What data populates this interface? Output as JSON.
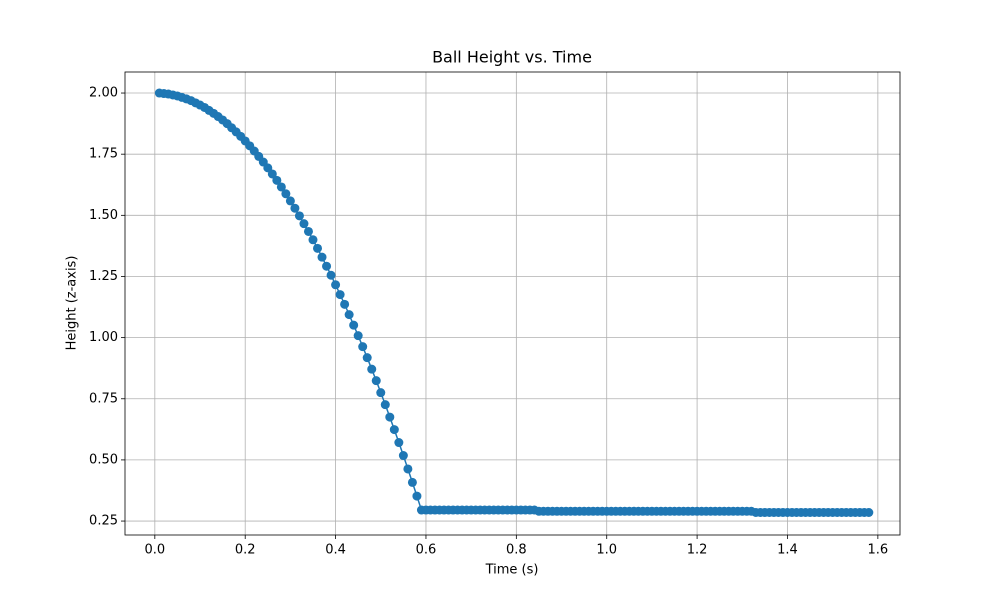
{
  "chart_data": {
    "type": "line",
    "title": "Ball Height vs. Time",
    "x_label": "Time (s)",
    "y_label": "Height (z-axis)",
    "grid": true,
    "marker": "o",
    "xlim": [
      -0.066,
      1.649
    ],
    "ylim": [
      0.193,
      2.086
    ],
    "xticks": [
      {
        "value": 0,
        "label": "0.0"
      },
      0.2,
      0.4,
      0.6,
      0.8,
      {
        "value": 1,
        "label": "1.0"
      },
      1.2,
      1.4,
      1.6
    ],
    "yticks": [
      0.25,
      {
        "value": 0.5,
        "label": "0.50"
      },
      0.75,
      {
        "value": 1,
        "label": "1.00"
      },
      1.25,
      {
        "value": 1.5,
        "label": "1.50"
      },
      1.75,
      {
        "value": 2,
        "label": "2.00"
      }
    ],
    "x": [
      0.01,
      0.02,
      0.03,
      0.04,
      0.05,
      0.06,
      0.07,
      0.08,
      0.09,
      0.1,
      0.11,
      0.12,
      0.13,
      0.14,
      0.15,
      0.16,
      0.17,
      0.18,
      0.19,
      0.2,
      0.21,
      0.22,
      0.23,
      0.24,
      0.25,
      0.26,
      0.27,
      0.28,
      0.29,
      0.3,
      0.31,
      0.32,
      0.33,
      0.34,
      0.35,
      0.36,
      0.37,
      0.38,
      0.39,
      0.4,
      0.41,
      0.42,
      0.43,
      0.44,
      0.45,
      0.46,
      0.47,
      0.48,
      0.49,
      0.5,
      0.51,
      0.52,
      0.53,
      0.54,
      0.55,
      0.56,
      0.57,
      0.58,
      0.59,
      0.6,
      0.61,
      0.62,
      0.63,
      0.64,
      0.65,
      0.66,
      0.67,
      0.68,
      0.69,
      0.7,
      0.71,
      0.72,
      0.73,
      0.74,
      0.75,
      0.76,
      0.77,
      0.78,
      0.79,
      0.8,
      0.81,
      0.82,
      0.83,
      0.84,
      0.85,
      0.86,
      0.87,
      0.88,
      0.89,
      0.9,
      0.91,
      0.92,
      0.93,
      0.94,
      0.95,
      0.96,
      0.97,
      0.98,
      0.99,
      1.0,
      1.01,
      1.02,
      1.03,
      1.04,
      1.05,
      1.06,
      1.07,
      1.08,
      1.09,
      1.1,
      1.11,
      1.12,
      1.13,
      1.14,
      1.15,
      1.16,
      1.17,
      1.18,
      1.19,
      1.2,
      1.21,
      1.22,
      1.23,
      1.24,
      1.25,
      1.26,
      1.27,
      1.28,
      1.29,
      1.3,
      1.31,
      1.32,
      1.33,
      1.34,
      1.35,
      1.36,
      1.37,
      1.38,
      1.39,
      1.4,
      1.41,
      1.42,
      1.43,
      1.44,
      1.45,
      1.46,
      1.47,
      1.48,
      1.49,
      1.5,
      1.51,
      1.52,
      1.53,
      1.54,
      1.55,
      1.56,
      1.57,
      1.58
    ],
    "series": [
      {
        "color": "#1f77b4",
        "values": [
          2.0,
          1.998,
          1.996,
          1.992,
          1.988,
          1.982,
          1.976,
          1.969,
          1.96,
          1.951,
          1.941,
          1.929,
          1.917,
          1.904,
          1.89,
          1.875,
          1.858,
          1.841,
          1.823,
          1.804,
          1.784,
          1.763,
          1.741,
          1.718,
          1.694,
          1.669,
          1.643,
          1.616,
          1.588,
          1.559,
          1.529,
          1.498,
          1.466,
          1.434,
          1.4,
          1.365,
          1.329,
          1.292,
          1.255,
          1.216,
          1.176,
          1.136,
          1.094,
          1.051,
          1.008,
          0.963,
          0.918,
          0.871,
          0.824,
          0.775,
          0.726,
          0.675,
          0.624,
          0.571,
          0.518,
          0.463,
          0.408,
          0.352,
          0.295,
          0.295,
          0.295,
          0.295,
          0.295,
          0.295,
          0.295,
          0.295,
          0.295,
          0.295,
          0.295,
          0.295,
          0.295,
          0.295,
          0.295,
          0.295,
          0.295,
          0.295,
          0.295,
          0.295,
          0.295,
          0.295,
          0.295,
          0.295,
          0.295,
          0.295,
          0.29,
          0.29,
          0.29,
          0.29,
          0.29,
          0.29,
          0.29,
          0.29,
          0.29,
          0.29,
          0.29,
          0.29,
          0.29,
          0.29,
          0.29,
          0.29,
          0.29,
          0.29,
          0.29,
          0.29,
          0.29,
          0.29,
          0.29,
          0.29,
          0.29,
          0.29,
          0.29,
          0.29,
          0.29,
          0.29,
          0.29,
          0.29,
          0.29,
          0.29,
          0.29,
          0.29,
          0.29,
          0.29,
          0.29,
          0.29,
          0.29,
          0.29,
          0.29,
          0.29,
          0.29,
          0.29,
          0.29,
          0.29,
          0.285,
          0.285,
          0.285,
          0.285,
          0.285,
          0.285,
          0.285,
          0.285,
          0.285,
          0.285,
          0.285,
          0.285,
          0.285,
          0.285,
          0.285,
          0.285,
          0.285,
          0.285,
          0.285,
          0.285,
          0.285,
          0.285,
          0.285,
          0.285,
          0.285,
          0.285
        ]
      }
    ]
  }
}
